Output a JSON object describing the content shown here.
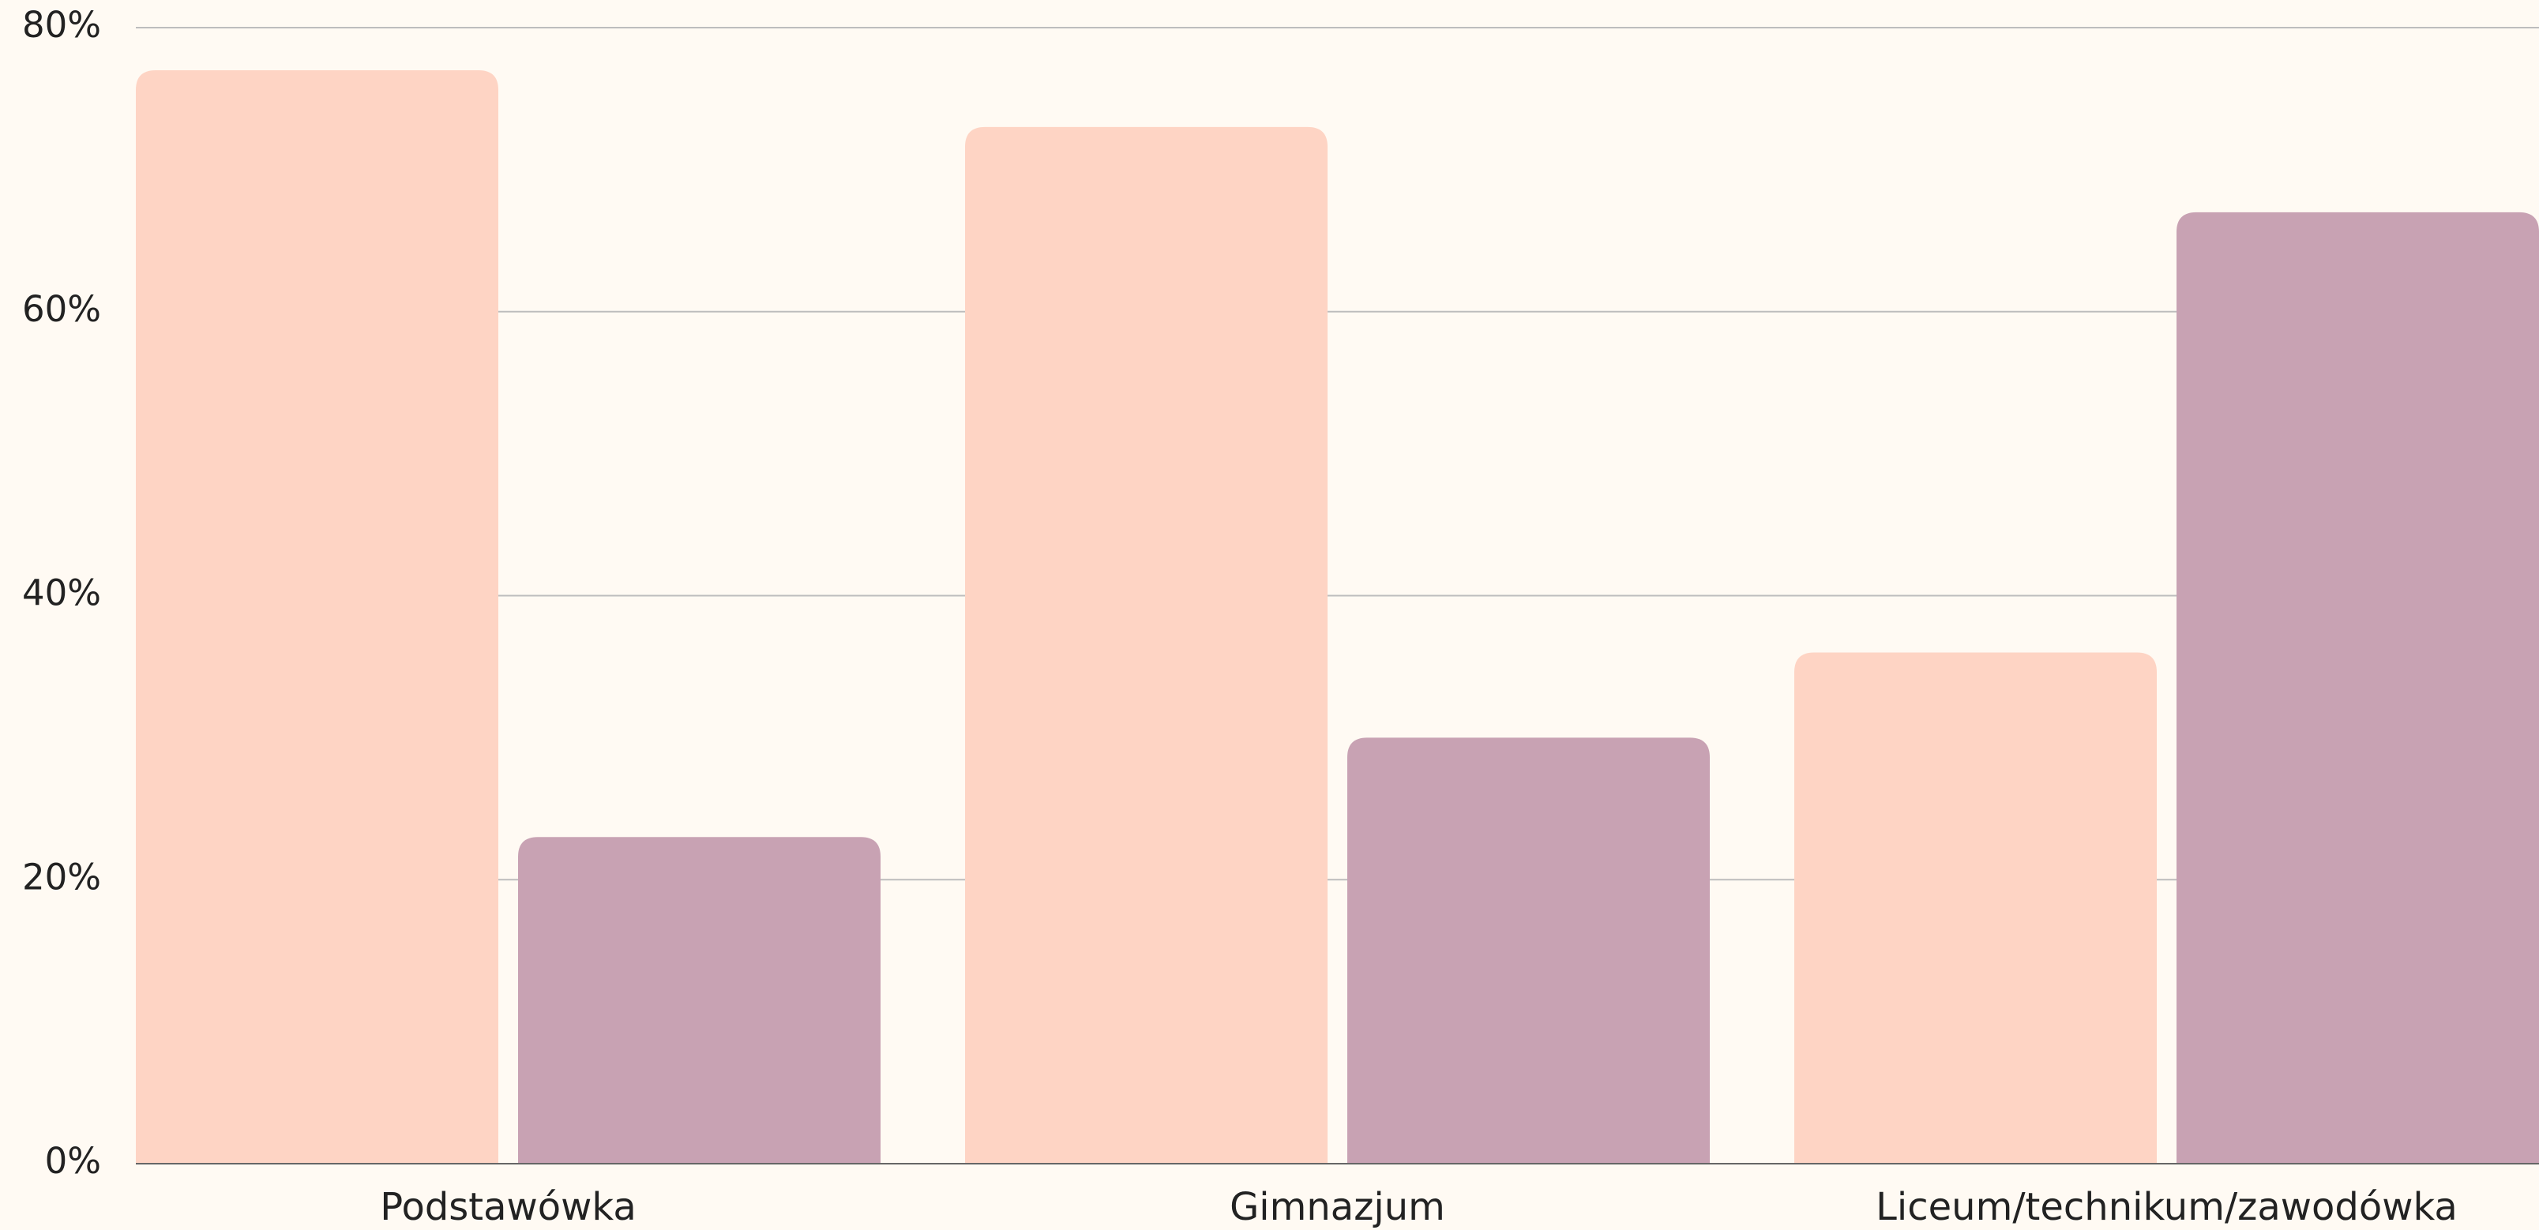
{
  "chart_data": {
    "type": "bar",
    "categories": [
      "Podstawówka",
      "Gimnazjum",
      "Liceum/technikum/zawodówka"
    ],
    "series": [
      {
        "color": "#fed4c4",
        "values": [
          77,
          73,
          36
        ]
      },
      {
        "color": "#c8a2b3",
        "values": [
          23,
          30,
          67
        ]
      }
    ],
    "ylim": [
      0,
      80
    ],
    "yticks": [
      {
        "value": 0,
        "label": "0%"
      },
      {
        "value": 20,
        "label": "20%"
      },
      {
        "value": 40,
        "label": "40%"
      },
      {
        "value": 60,
        "label": "60%"
      },
      {
        "value": 80,
        "label": "80%"
      }
    ],
    "grid": true
  }
}
